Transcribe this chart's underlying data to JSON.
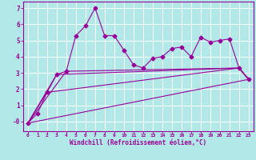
{
  "xlabel": "Windchill (Refroidissement éolien,°C)",
  "bg_color": "#b2e8e8",
  "line_color": "#990099",
  "grid_color": "#ffffff",
  "ylim": [
    -0.6,
    7.4
  ],
  "xlim": [
    -0.5,
    23.5
  ],
  "yticks": [
    0,
    1,
    2,
    3,
    4,
    5,
    6,
    7
  ],
  "ytick_labels": [
    "-0",
    "1",
    "2",
    "3",
    "4",
    "5",
    "6",
    "7"
  ],
  "xticks": [
    0,
    1,
    2,
    3,
    4,
    5,
    6,
    7,
    8,
    9,
    10,
    11,
    12,
    13,
    14,
    15,
    16,
    17,
    18,
    19,
    20,
    21,
    22,
    23
  ],
  "main_series": {
    "x": [
      0,
      1,
      2,
      3,
      4,
      5,
      6,
      7,
      8,
      9,
      10,
      11,
      12,
      13,
      14,
      15,
      16,
      17,
      18,
      19,
      20,
      21,
      22,
      23
    ],
    "y": [
      -0.1,
      0.5,
      1.8,
      2.9,
      3.1,
      5.3,
      5.9,
      7.0,
      5.3,
      5.3,
      4.4,
      3.5,
      3.3,
      3.9,
      4.0,
      4.5,
      4.6,
      4.0,
      5.2,
      4.9,
      5.0,
      5.1,
      3.3,
      2.6
    ]
  },
  "trend_lines": [
    {
      "x": [
        0,
        3,
        22,
        23
      ],
      "y": [
        -0.1,
        2.9,
        3.3,
        2.6
      ]
    },
    {
      "x": [
        0,
        4,
        22,
        23
      ],
      "y": [
        -0.1,
        3.1,
        3.3,
        2.6
      ]
    },
    {
      "x": [
        0,
        2,
        22,
        23
      ],
      "y": [
        -0.1,
        1.8,
        3.3,
        2.6
      ]
    },
    {
      "x": [
        0,
        23
      ],
      "y": [
        -0.1,
        2.6
      ]
    }
  ]
}
